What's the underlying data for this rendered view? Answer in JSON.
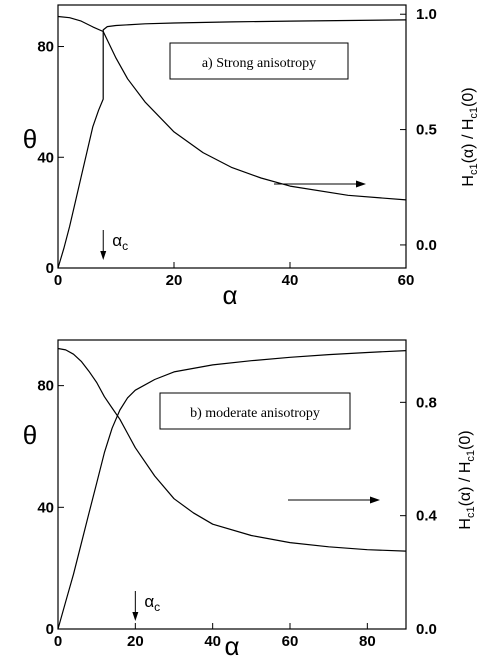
{
  "chart_data": [
    {
      "type": "line",
      "panel": "a",
      "annotation": "a) Strong anisotropy",
      "xlabel": "α",
      "ylabel_left": "θ",
      "ylabel_right": "Hc1(α) / Hc1(0)",
      "xlim": [
        0,
        60
      ],
      "ylim_left": [
        0,
        95
      ],
      "ylim_right": [
        -0.1,
        1.04
      ],
      "xticks": [
        "0",
        "20",
        "40",
        "60"
      ],
      "yticks_left": [
        "0",
        "40",
        "80"
      ],
      "yticks_right": [
        "0.0",
        "0.5",
        "1.0"
      ],
      "alpha_c_label": "α",
      "alpha_c_sub": "c",
      "alpha_c_value": 7.8,
      "series": [
        {
          "axis": "left",
          "x": [
            0,
            1,
            2,
            3,
            4,
            5,
            6,
            7,
            7.8,
            7.8,
            8.5,
            10,
            15,
            20,
            30,
            40,
            50,
            60
          ],
          "y": [
            0,
            7,
            15,
            24,
            33,
            42,
            51,
            57,
            61,
            86,
            87.2,
            87.6,
            88.2,
            88.5,
            88.9,
            89.2,
            89.4,
            89.6
          ]
        },
        {
          "axis": "right",
          "x": [
            0,
            2,
            4,
            6,
            7.8,
            10,
            12,
            15,
            20,
            25,
            30,
            35,
            40,
            50,
            60
          ],
          "y": [
            0.99,
            0.985,
            0.97,
            0.945,
            0.925,
            0.81,
            0.72,
            0.62,
            0.49,
            0.4,
            0.335,
            0.29,
            0.255,
            0.215,
            0.195
          ]
        }
      ]
    },
    {
      "type": "line",
      "panel": "b",
      "annotation": "b) moderate anisotropy",
      "xlabel": "α",
      "ylabel_left": "θ",
      "ylabel_right": "Hc1(α) / Hc1(0)",
      "xlim": [
        0,
        90
      ],
      "ylim_left": [
        0,
        95
      ],
      "ylim_right": [
        0,
        1.02
      ],
      "xticks": [
        "0",
        "20",
        "40",
        "60",
        "80"
      ],
      "yticks_left": [
        "0",
        "40",
        "80"
      ],
      "yticks_right": [
        "0.0",
        "0.4",
        "0.8"
      ],
      "alpha_c_label": "α",
      "alpha_c_sub": "c",
      "alpha_c_value": 20,
      "series": [
        {
          "axis": "left",
          "x": [
            0,
            2,
            4,
            6,
            8,
            10,
            12,
            14,
            16,
            18,
            20,
            25,
            30,
            40,
            50,
            60,
            70,
            80,
            90
          ],
          "y": [
            0,
            9,
            18,
            28,
            38,
            48,
            58,
            66,
            72,
            76,
            78.5,
            82,
            84.5,
            86.8,
            88.2,
            89.3,
            90.2,
            90.9,
            91.5
          ]
        },
        {
          "axis": "right",
          "x": [
            0,
            2,
            4,
            6,
            8,
            10,
            12,
            14,
            16,
            18,
            20,
            25,
            30,
            35,
            40,
            50,
            60,
            70,
            80,
            90
          ],
          "y": [
            0.99,
            0.985,
            0.97,
            0.945,
            0.91,
            0.87,
            0.82,
            0.78,
            0.74,
            0.69,
            0.64,
            0.54,
            0.46,
            0.41,
            0.37,
            0.33,
            0.305,
            0.29,
            0.28,
            0.275
          ]
        }
      ]
    }
  ]
}
